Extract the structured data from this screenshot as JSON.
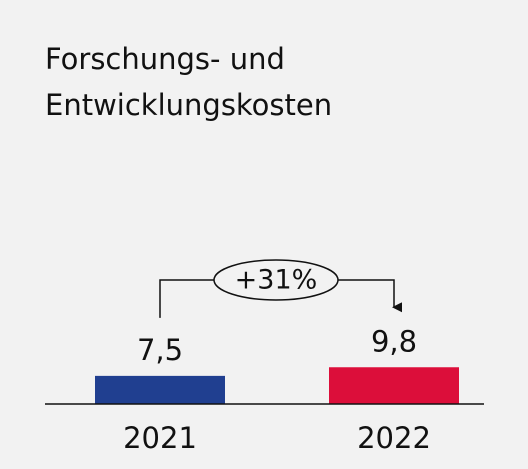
{
  "chart_data": {
    "type": "bar",
    "title": "Forschungs- und Entwicklungskosten",
    "categories": [
      "2021",
      "2022"
    ],
    "values": [
      7.5,
      9.8
    ],
    "value_labels": [
      "7,5",
      "9,8"
    ],
    "colors": [
      "#203f90",
      "#dc0e3a"
    ],
    "annotation": "+31%"
  }
}
